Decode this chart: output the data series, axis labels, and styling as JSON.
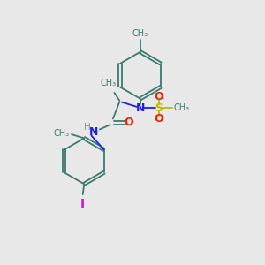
{
  "bg_color": "#e8e8e8",
  "bond_color": "#3d7a6e",
  "n_color": "#2222dd",
  "o_color": "#ee2200",
  "s_color": "#bbbb00",
  "i_color": "#ee00ee",
  "h_color": "#7a9aaa",
  "figsize": [
    3.0,
    3.0
  ],
  "dpi": 100,
  "xlim": [
    0,
    10
  ],
  "ylim": [
    0,
    10
  ]
}
